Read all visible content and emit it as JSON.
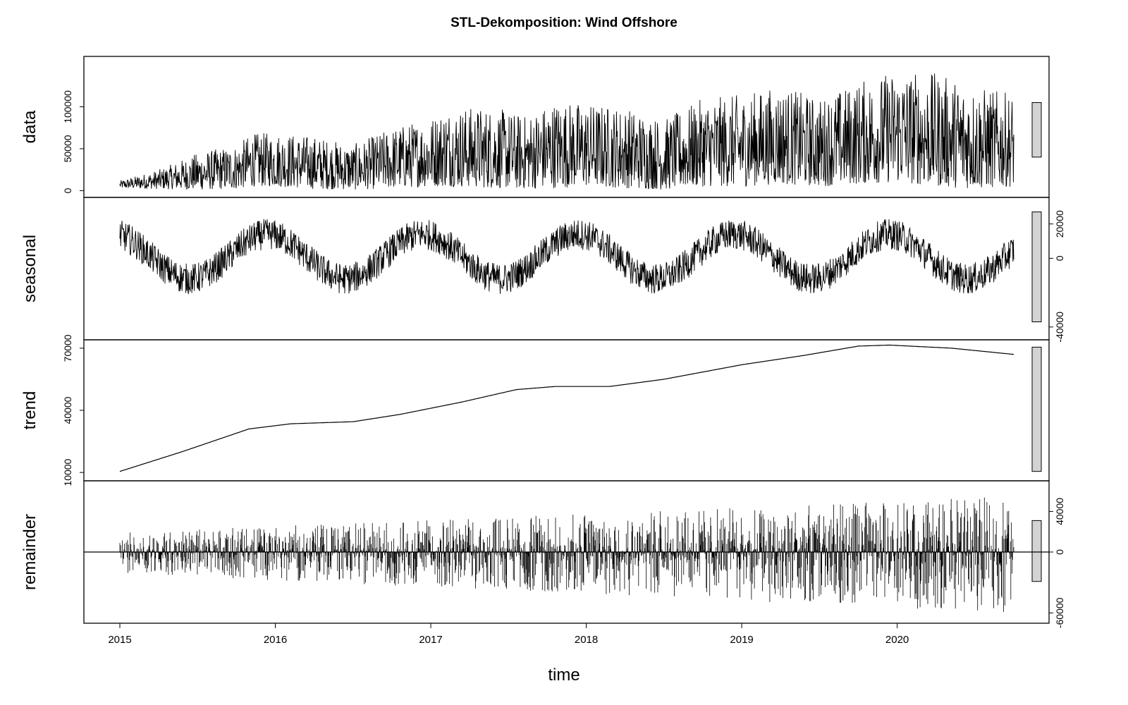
{
  "chart_data": {
    "type": "line",
    "title": "STL-Dekomposition: Wind Offshore",
    "xlabel": "time",
    "x_ticks": [
      "2015",
      "2016",
      "2017",
      "2018",
      "2019",
      "2020"
    ],
    "x_range": [
      2015.0,
      2020.75
    ],
    "panels": [
      {
        "name": "data",
        "ylabel": "data",
        "yticks": [
          "0",
          "50000",
          "100000"
        ],
        "ylim": [
          -3000,
          155000
        ],
        "tick_side": "left",
        "range_bar": [
          40000,
          105000
        ],
        "series": [
          {
            "t": 2015.0,
            "lo": 3000,
            "hi": 12000
          },
          {
            "t": 2015.25,
            "lo": 2000,
            "hi": 25000
          },
          {
            "t": 2015.5,
            "lo": 1000,
            "hi": 45000
          },
          {
            "t": 2015.75,
            "lo": 2000,
            "hi": 55000
          },
          {
            "t": 2015.85,
            "lo": 5000,
            "hi": 68000
          },
          {
            "t": 2016.0,
            "lo": 5000,
            "hi": 70000
          },
          {
            "t": 2016.25,
            "lo": 2000,
            "hi": 65000
          },
          {
            "t": 2016.5,
            "lo": 1000,
            "hi": 55000
          },
          {
            "t": 2016.75,
            "lo": 3000,
            "hi": 75000
          },
          {
            "t": 2017.0,
            "lo": 5000,
            "hi": 88000
          },
          {
            "t": 2017.1,
            "lo": 5000,
            "hi": 100000
          },
          {
            "t": 2017.4,
            "lo": 3000,
            "hi": 100000
          },
          {
            "t": 2017.6,
            "lo": 2000,
            "hi": 90000
          },
          {
            "t": 2017.8,
            "lo": 3000,
            "hi": 108000
          },
          {
            "t": 2018.0,
            "lo": 5000,
            "hi": 105000
          },
          {
            "t": 2018.25,
            "lo": 3000,
            "hi": 100000
          },
          {
            "t": 2018.5,
            "lo": 1000,
            "hi": 85000
          },
          {
            "t": 2018.75,
            "lo": 5000,
            "hi": 110000
          },
          {
            "t": 2019.0,
            "lo": 5000,
            "hi": 115000
          },
          {
            "t": 2019.25,
            "lo": 8000,
            "hi": 125000
          },
          {
            "t": 2019.5,
            "lo": 5000,
            "hi": 110000
          },
          {
            "t": 2019.75,
            "lo": 8000,
            "hi": 130000
          },
          {
            "t": 2020.0,
            "lo": 10000,
            "hi": 145000
          },
          {
            "t": 2020.25,
            "lo": 5000,
            "hi": 140000
          },
          {
            "t": 2020.5,
            "lo": 2000,
            "hi": 125000
          },
          {
            "t": 2020.75,
            "lo": 5000,
            "hi": 115000
          }
        ]
      },
      {
        "name": "seasonal",
        "ylabel": "seasonal",
        "yticks": [
          "-40000",
          "0",
          "20000"
        ],
        "ylim": [
          -45000,
          33000
        ],
        "tick_side": "right",
        "range_bar": [
          -37000,
          27000
        ],
        "amplitude": 13000,
        "noise": 9000
      },
      {
        "name": "trend",
        "ylabel": "trend",
        "yticks": [
          "10000",
          "40000",
          "70000"
        ],
        "ylim": [
          8000,
          72000
        ],
        "tick_side": "left",
        "range_bar": [
          10500,
          70500
        ],
        "series": [
          {
            "t": 2015.0,
            "v": 10500
          },
          {
            "t": 2015.4,
            "v": 20000
          },
          {
            "t": 2015.83,
            "v": 31000
          },
          {
            "t": 2016.1,
            "v": 33500
          },
          {
            "t": 2016.5,
            "v": 34500
          },
          {
            "t": 2016.8,
            "v": 38000
          },
          {
            "t": 2017.2,
            "v": 44000
          },
          {
            "t": 2017.55,
            "v": 50000
          },
          {
            "t": 2017.8,
            "v": 51500
          },
          {
            "t": 2018.15,
            "v": 51500
          },
          {
            "t": 2018.5,
            "v": 55000
          },
          {
            "t": 2019.0,
            "v": 62000
          },
          {
            "t": 2019.4,
            "v": 66500
          },
          {
            "t": 2019.75,
            "v": 71000
          },
          {
            "t": 2019.95,
            "v": 71500
          },
          {
            "t": 2020.35,
            "v": 70000
          },
          {
            "t": 2020.75,
            "v": 67000
          }
        ]
      },
      {
        "name": "remainder",
        "ylabel": "remainder",
        "yticks": [
          "-60000",
          "0",
          "40000"
        ],
        "ylim": [
          -66000,
          66000
        ],
        "tick_side": "right",
        "range_bar": [
          -29000,
          31000
        ],
        "baseline": 0,
        "pos_max": 55000,
        "neg_max": -60000
      }
    ]
  }
}
